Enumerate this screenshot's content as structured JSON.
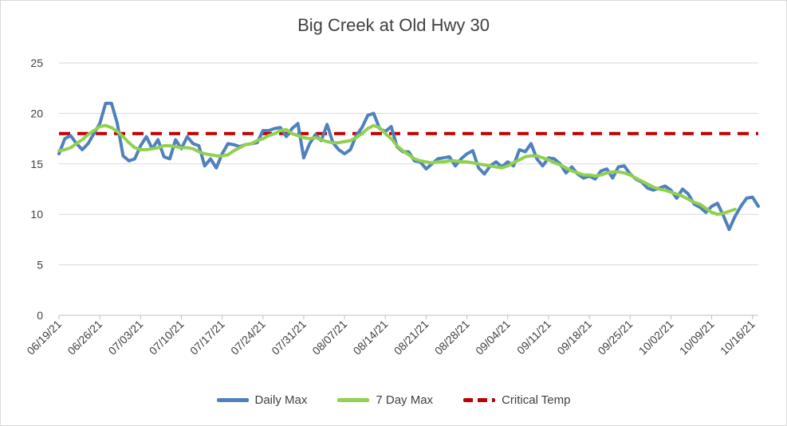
{
  "chart_data": {
    "type": "line",
    "title": "Big Creek at Old Hwy 30",
    "xlabel": "",
    "ylabel": "",
    "ylim": [
      0,
      25
    ],
    "yticks": [
      0,
      5,
      10,
      15,
      20,
      25
    ],
    "x_start": "06/19/21",
    "x_end": "10/19/21",
    "xtick_labels": [
      "06/19/21",
      "06/26/21",
      "07/03/21",
      "07/10/21",
      "07/17/21",
      "07/24/21",
      "07/31/21",
      "08/07/21",
      "08/14/21",
      "08/21/21",
      "08/28/21",
      "09/04/21",
      "09/11/21",
      "09/18/21",
      "09/25/21",
      "10/02/21",
      "10/09/21",
      "10/16/21"
    ],
    "grid": true,
    "legend_position": "bottom",
    "series": [
      {
        "name": "Daily Max",
        "color": "#4f81bd",
        "values": [
          16.0,
          17.5,
          17.8,
          17.0,
          16.4,
          17.0,
          18.0,
          19.0,
          21.0,
          21.0,
          19.0,
          15.8,
          15.3,
          15.5,
          16.8,
          17.7,
          16.5,
          17.4,
          15.7,
          15.5,
          17.4,
          16.5,
          17.7,
          17.0,
          16.8,
          14.8,
          15.5,
          14.6,
          16.0,
          17.0,
          16.9,
          16.7,
          16.9,
          17.0,
          17.1,
          18.3,
          18.3,
          18.5,
          18.6,
          17.7,
          18.5,
          19.0,
          15.6,
          17.0,
          17.9,
          17.3,
          18.9,
          17.1,
          16.4,
          16.0,
          16.4,
          17.8,
          18.6,
          19.8,
          20.0,
          18.5,
          18.2,
          18.7,
          16.7,
          16.2,
          16.2,
          15.3,
          15.2,
          14.5,
          15.0,
          15.5,
          15.6,
          15.7,
          14.8,
          15.5,
          16.0,
          16.3,
          14.6,
          14.0,
          14.8,
          15.2,
          14.7,
          15.2,
          14.8,
          16.4,
          16.2,
          17.0,
          15.5,
          14.8,
          15.6,
          15.5,
          15.0,
          14.1,
          14.7,
          14.0,
          13.6,
          13.8,
          13.5,
          14.3,
          14.5,
          13.6,
          14.7,
          14.8,
          14.0,
          13.5,
          13.2,
          12.6,
          12.4,
          12.6,
          12.8,
          12.4,
          11.6,
          12.5,
          12.0,
          11.0,
          10.7,
          10.2,
          10.8,
          11.1,
          9.9,
          8.5,
          9.8,
          10.8,
          11.6,
          11.7,
          10.8
        ]
      },
      {
        "name": "7 Day Max",
        "color": "#92d050",
        "values": [
          16.3,
          16.4,
          16.6,
          17.0,
          17.4,
          17.9,
          18.3,
          18.7,
          18.8,
          18.6,
          18.2,
          17.7,
          17.1,
          16.6,
          16.4,
          16.4,
          16.5,
          16.6,
          16.8,
          16.8,
          16.7,
          16.6,
          16.6,
          16.5,
          16.2,
          16.0,
          15.9,
          15.8,
          15.8,
          15.9,
          16.3,
          16.6,
          16.9,
          17.0,
          17.3,
          17.5,
          17.8,
          18.0,
          18.3,
          18.4,
          18.0,
          17.8,
          17.6,
          17.5,
          17.6,
          17.4,
          17.2,
          17.1,
          17.1,
          17.2,
          17.3,
          17.6,
          18.0,
          18.5,
          18.8,
          18.6,
          18.0,
          17.5,
          16.8,
          16.3,
          15.9,
          15.5,
          15.3,
          15.2,
          15.1,
          15.2,
          15.2,
          15.3,
          15.3,
          15.2,
          15.2,
          15.1,
          15.0,
          14.9,
          14.8,
          14.7,
          14.6,
          14.8,
          15.1,
          15.4,
          15.7,
          15.8,
          15.8,
          15.6,
          15.4,
          15.1,
          14.9,
          14.6,
          14.3,
          14.1,
          13.9,
          13.9,
          13.8,
          13.9,
          14.1,
          14.2,
          14.2,
          14.1,
          13.9,
          13.6,
          13.3,
          13.0,
          12.7,
          12.5,
          12.4,
          12.2,
          12.0,
          11.8,
          11.5,
          11.2,
          11.0,
          10.6,
          10.2,
          10.0,
          10.1,
          10.3,
          10.5
        ]
      },
      {
        "name": "Critical Temp",
        "color": "#c00000",
        "constant": 18
      }
    ]
  }
}
